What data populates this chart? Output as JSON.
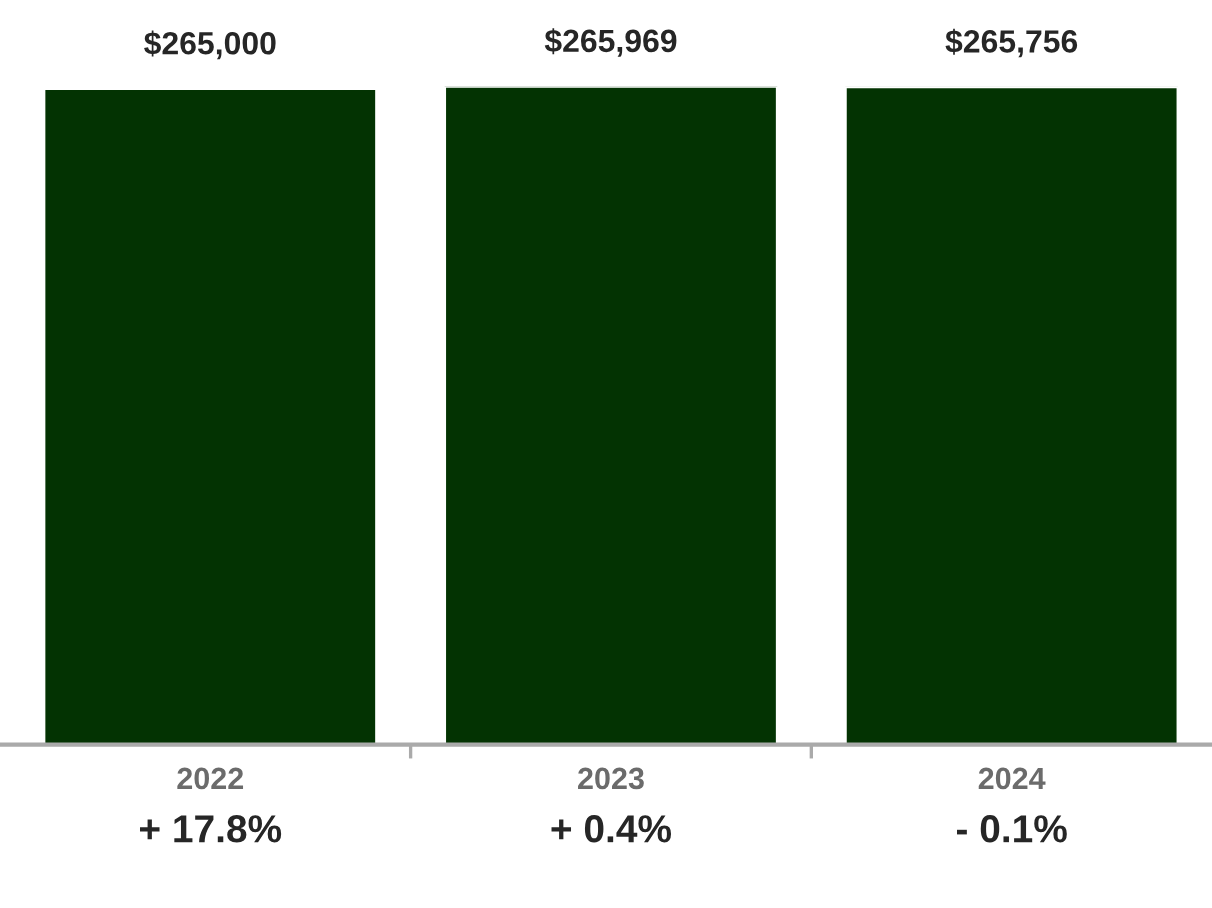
{
  "chart_data": {
    "type": "bar",
    "categories": [
      "2022",
      "2023",
      "2024"
    ],
    "values": [
      265000,
      265969,
      265756
    ],
    "value_labels": [
      "$265,000",
      "$265,969",
      "$265,756"
    ],
    "color": "#033302",
    "annotations": [
      "+ 17.8%",
      "+ 0.4%",
      "- 0.1%"
    ],
    "grid": false,
    "legend": false
  }
}
